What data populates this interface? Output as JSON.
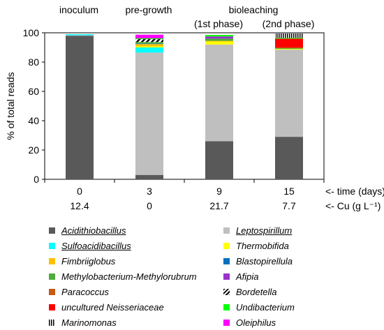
{
  "chart_data": {
    "type": "stacked-bar",
    "ylabel": "% of total reads",
    "ylim": [
      0,
      100
    ],
    "yticks": [
      0,
      20,
      40,
      60,
      80,
      100
    ],
    "grid": false,
    "group_labels": [
      "inoculum",
      "pre-growth",
      "bioleaching",
      "(1st phase)",
      "(2nd phase)"
    ],
    "categories": [
      "0",
      "3",
      "9",
      "15"
    ],
    "cu_values": [
      "12.4",
      "0",
      "21.7",
      "7.7"
    ],
    "time_row_label": "<- time (days)",
    "cu_row_label": "<- Cu (g L⁻¹)",
    "series": [
      {
        "name": "Acidithiobacillus",
        "color": "#595959",
        "values": [
          98.0,
          3.0,
          26.0,
          29.0
        ],
        "underline": true
      },
      {
        "name": "Leptospirillum",
        "color": "#bfbfbf",
        "values": [
          0.3,
          83.5,
          66.0,
          59.5
        ],
        "underline": true
      },
      {
        "name": "Sulfoacidibacillus",
        "color": "#00ffff",
        "values": [
          0.7,
          3.5,
          0.0,
          0.0
        ],
        "underline": true
      },
      {
        "name": "Thermobifida",
        "color": "#ffff00",
        "values": [
          0.0,
          0.8,
          2.0,
          0.5
        ]
      },
      {
        "name": "Fimbriiglobus",
        "color": "#ffc000",
        "values": [
          0.0,
          1.5,
          0.5,
          0.0
        ]
      },
      {
        "name": "Blastopirellula",
        "color": "#0070c0",
        "values": [
          0.0,
          0.4,
          0.0,
          0.0
        ]
      },
      {
        "name": "Methylobacterium-Methylorubrum",
        "color": "#4ead3a",
        "values": [
          0.0,
          1.0,
          1.5,
          0.5
        ]
      },
      {
        "name": "Afipia",
        "color": "#9933cc",
        "values": [
          0.0,
          0.0,
          1.5,
          0.0
        ]
      },
      {
        "name": "Paracoccus",
        "color": "#c55a11",
        "values": [
          0.0,
          0.0,
          0.0,
          0.5
        ]
      },
      {
        "name": "Bordetella",
        "color": "hatch",
        "values": [
          0.0,
          2.0,
          0.0,
          0.0
        ]
      },
      {
        "name": "uncultured Neisseriaceae",
        "color": "#ff0000",
        "values": [
          0.0,
          0.0,
          0.0,
          6.0
        ]
      },
      {
        "name": "Undibacterium",
        "color": "#00ff00",
        "values": [
          0.0,
          0.5,
          1.0,
          0.5
        ]
      },
      {
        "name": "Marinomonas",
        "color": "vlines",
        "values": [
          0.0,
          0.0,
          0.0,
          3.0
        ]
      },
      {
        "name": "Oleiphilus",
        "color": "#ff00ff",
        "values": [
          0.0,
          2.5,
          0.0,
          0.0
        ]
      }
    ]
  }
}
